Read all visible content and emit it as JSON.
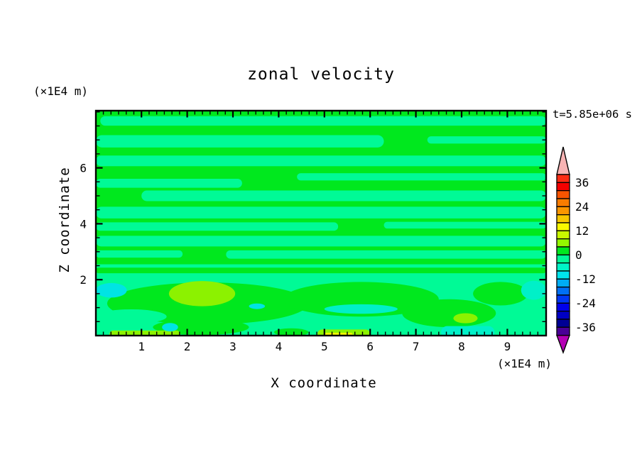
{
  "title": "zonal velocity",
  "time_label": "t=5.85e+06 s",
  "x_axis": {
    "label": "X coordinate",
    "unit": "(×1E4 m)"
  },
  "y_axis": {
    "label": "Z coordinate",
    "unit": "(×1E4 m)"
  },
  "chart_data": {
    "type": "heatmap",
    "title": "zonal velocity",
    "xlabel": "X coordinate",
    "ylabel": "Z coordinate",
    "x_unit": "(×1E4 m)",
    "y_unit": "(×1E4 m)",
    "time_annotation": "t=5.85e+06 s",
    "xlim": [
      0,
      9.85
    ],
    "ylim": [
      0,
      8.05
    ],
    "x_ticks": [
      1,
      2,
      3,
      4,
      5,
      6,
      7,
      8,
      9
    ],
    "y_ticks": [
      2,
      4,
      6
    ],
    "x_minor_per_major": 6,
    "y_minor_step": 0.5,
    "grid": false,
    "colorbar": {
      "position": "right",
      "max": 40,
      "min": -40,
      "interval": 4,
      "labels": [
        36,
        24,
        12,
        0,
        -12,
        -24,
        -36
      ],
      "colors_top_to_bottom": [
        "#fb2c14",
        "#f40000",
        "#f85400",
        "#f87c00",
        "#fa9600",
        "#f8c800",
        "#f8f800",
        "#c8f800",
        "#94f800",
        "#00e81e",
        "#00fa96",
        "#00f4c8",
        "#00e4ec",
        "#00acf4",
        "#0070f4",
        "#0038f4",
        "#0000ec",
        "#0000c4",
        "#000094",
        "#4a0096"
      ],
      "over_arrow_color": "#f8b4b4",
      "under_arrow_color": "#b400b4"
    },
    "field_colors": {
      "green": "#00e81e",
      "mint": "#00fa96",
      "chartreuse": "#8cf200",
      "yellow": "#eef600",
      "aqua": "#00f0c8",
      "cyan": "#00e4e4"
    },
    "field_value_ranges": {
      "green": "0 to 4",
      "mint": "-4 to 0",
      "chartreuse": "4 to 8",
      "yellow": "12 to 16",
      "aqua": "-8 to -4",
      "cyan": "-12 to -8"
    },
    "field_regions": [
      {
        "c": "green",
        "s": "rect",
        "x1": 0,
        "x2": 9.85,
        "z1": 0,
        "z2": 8.05
      },
      {
        "c": "mint",
        "s": "stripe",
        "x1": 0.1,
        "x2": 9.85,
        "zc": 7.68,
        "hz": 0.17
      },
      {
        "c": "mint",
        "s": "stripe",
        "x1": 0.0,
        "x2": 6.3,
        "zc": 6.95,
        "hz": 0.22
      },
      {
        "c": "mint",
        "s": "stripe",
        "x1": 7.25,
        "x2": 9.85,
        "zc": 7.0,
        "hz": 0.13
      },
      {
        "c": "mint",
        "s": "stripe",
        "x1": 0.0,
        "x2": 9.85,
        "zc": 6.25,
        "hz": 0.19
      },
      {
        "c": "mint",
        "s": "stripe",
        "x1": 4.4,
        "x2": 9.85,
        "zc": 5.68,
        "hz": 0.13
      },
      {
        "c": "mint",
        "s": "stripe",
        "x1": 0.0,
        "x2": 3.2,
        "zc": 5.45,
        "hz": 0.16
      },
      {
        "c": "mint",
        "s": "stripe",
        "x1": 1.0,
        "x2": 9.85,
        "zc": 5.0,
        "hz": 0.19
      },
      {
        "c": "mint",
        "s": "stripe",
        "x1": 0.0,
        "x2": 9.85,
        "zc": 4.4,
        "hz": 0.21
      },
      {
        "c": "mint",
        "s": "stripe",
        "x1": 0.0,
        "x2": 5.3,
        "zc": 3.9,
        "hz": 0.15
      },
      {
        "c": "mint",
        "s": "stripe",
        "x1": 6.3,
        "x2": 9.85,
        "zc": 3.95,
        "hz": 0.12
      },
      {
        "c": "mint",
        "s": "stripe",
        "x1": 0.0,
        "x2": 9.85,
        "zc": 3.38,
        "hz": 0.19
      },
      {
        "c": "mint",
        "s": "stripe",
        "x1": 0.0,
        "x2": 1.9,
        "zc": 2.92,
        "hz": 0.13
      },
      {
        "c": "mint",
        "s": "stripe",
        "x1": 2.85,
        "x2": 9.85,
        "zc": 2.9,
        "hz": 0.15
      },
      {
        "c": "mint",
        "s": "rect",
        "x1": 0,
        "x2": 9.85,
        "z1": 0,
        "z2": 2.55
      },
      {
        "c": "green",
        "s": "stripe",
        "x1": 0.0,
        "x2": 9.85,
        "zc": 2.33,
        "hz": 0.1
      },
      {
        "c": "green",
        "s": "blob",
        "x1": 0.25,
        "x2": 4.65,
        "zc": 1.15,
        "hz": 0.75
      },
      {
        "c": "green",
        "s": "blob",
        "x1": 4.1,
        "x2": 7.5,
        "zc": 1.3,
        "hz": 0.62
      },
      {
        "c": "green",
        "s": "blob",
        "x1": 6.7,
        "x2": 8.75,
        "zc": 0.8,
        "hz": 0.5
      },
      {
        "c": "green",
        "s": "blob",
        "x1": 8.25,
        "x2": 9.45,
        "zc": 1.5,
        "hz": 0.42
      },
      {
        "c": "green",
        "s": "blob",
        "x1": 1.25,
        "x2": 3.35,
        "zc": 0.3,
        "hz": 0.28
      },
      {
        "c": "green",
        "s": "blob",
        "x1": 3.9,
        "x2": 4.65,
        "zc": 0.12,
        "hz": 0.14
      },
      {
        "c": "mint",
        "s": "blob",
        "x1": 0.0,
        "x2": 1.55,
        "zc": 0.68,
        "hz": 0.26
      },
      {
        "c": "chartreuse",
        "s": "blob",
        "x1": 1.6,
        "x2": 3.05,
        "zc": 1.5,
        "hz": 0.45
      },
      {
        "c": "chartreuse",
        "s": "blob",
        "x1": 7.82,
        "x2": 8.35,
        "zc": 0.62,
        "hz": 0.18
      },
      {
        "c": "chartreuse",
        "s": "stripe",
        "x1": 0.3,
        "x2": 1.85,
        "zc": 0.05,
        "hz": 0.13
      },
      {
        "c": "chartreuse",
        "s": "stripe",
        "x1": 4.85,
        "x2": 6.0,
        "zc": 0.06,
        "hz": 0.16
      },
      {
        "c": "yellow",
        "s": "stripe",
        "x1": 5.0,
        "x2": 5.62,
        "zc": 0.03,
        "hz": 0.07
      },
      {
        "c": "cyan",
        "s": "blob",
        "x1": 0.0,
        "x2": 0.68,
        "zc": 1.62,
        "hz": 0.26
      },
      {
        "c": "aqua",
        "s": "blob",
        "x1": 9.3,
        "x2": 9.85,
        "zc": 1.62,
        "hz": 0.34
      },
      {
        "c": "aqua",
        "s": "blob",
        "x1": 5.0,
        "x2": 6.6,
        "zc": 0.95,
        "hz": 0.17
      },
      {
        "c": "aqua",
        "s": "stripe",
        "x1": 7.55,
        "x2": 8.72,
        "zc": 0.12,
        "hz": 0.22
      },
      {
        "c": "cyan",
        "s": "blob",
        "x1": 1.45,
        "x2": 1.8,
        "zc": 0.3,
        "hz": 0.15
      },
      {
        "c": "cyan",
        "s": "blob",
        "x1": 3.35,
        "x2": 3.7,
        "zc": 1.05,
        "hz": 0.1
      }
    ]
  }
}
